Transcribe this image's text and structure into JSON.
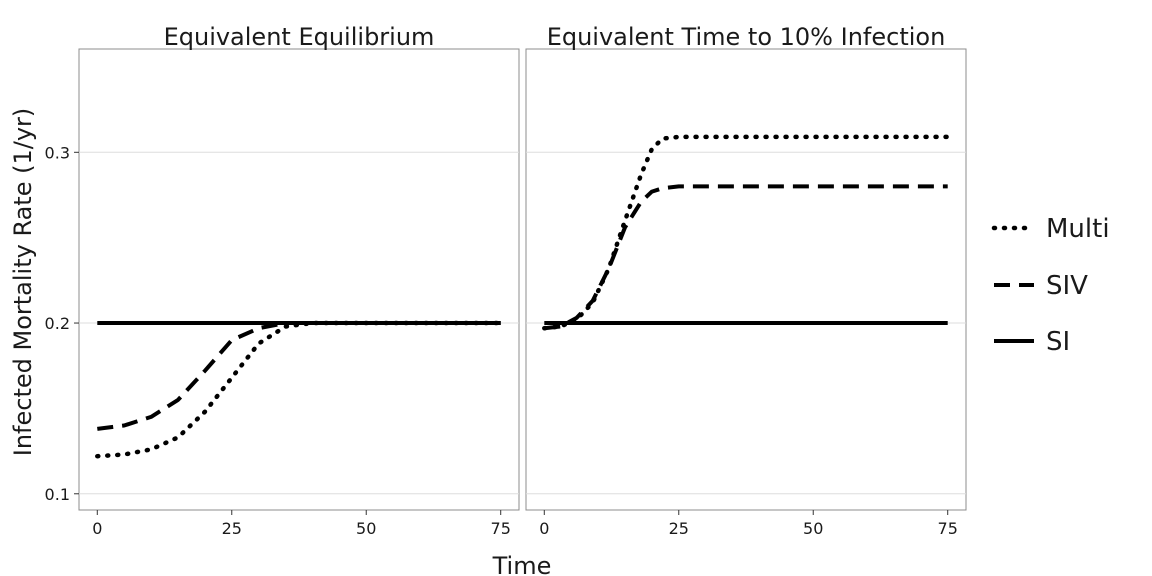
{
  "chart_data": [
    {
      "type": "line",
      "title": "Equivalent Equilibrium",
      "xlabel": "Time",
      "ylabel": "Infected Mortality Rate (1/yr)",
      "xlim": [
        -3.4,
        78.4
      ],
      "ylim": [
        0.0905,
        0.3605
      ],
      "xticks": [
        0,
        25,
        50,
        75
      ],
      "yticks": [
        0.1,
        0.2,
        0.3
      ],
      "xtick_labels": [
        "0",
        "25",
        "50",
        "75"
      ],
      "ytick_labels": [
        "0.1",
        "0.2",
        "0.3"
      ],
      "grid": true,
      "series": [
        {
          "name": "Multi",
          "style": "dotted",
          "x": [
            0,
            5,
            10,
            15,
            20,
            25,
            30,
            35,
            40,
            45,
            50,
            60,
            75
          ],
          "y": [
            0.122,
            0.123,
            0.126,
            0.133,
            0.148,
            0.168,
            0.188,
            0.198,
            0.2,
            0.2,
            0.2,
            0.2,
            0.2
          ]
        },
        {
          "name": "SIV",
          "style": "dashed",
          "x": [
            0,
            5,
            10,
            15,
            20,
            25,
            30,
            35,
            40,
            45,
            50,
            60,
            75
          ],
          "y": [
            0.138,
            0.14,
            0.145,
            0.155,
            0.172,
            0.19,
            0.197,
            0.2,
            0.2,
            0.2,
            0.2,
            0.2,
            0.2
          ]
        },
        {
          "name": "SI",
          "style": "solid",
          "x": [
            0,
            75
          ],
          "y": [
            0.2,
            0.2
          ]
        }
      ]
    },
    {
      "type": "line",
      "title": "Equivalent Time to 10% Infection",
      "xlabel": "Time",
      "ylabel": "Infected Mortality Rate (1/yr)",
      "xlim": [
        -3.4,
        78.4
      ],
      "ylim": [
        0.0905,
        0.3605
      ],
      "xticks": [
        0,
        25,
        50,
        75
      ],
      "yticks": [
        0.1,
        0.2,
        0.3
      ],
      "xtick_labels": [
        "0",
        "25",
        "50",
        "75"
      ],
      "ytick_labels": [
        "0.1",
        "0.2",
        "0.3"
      ],
      "grid": true,
      "series": [
        {
          "name": "Multi",
          "style": "dotted",
          "x": [
            0,
            3,
            6,
            9,
            12,
            15,
            18,
            20,
            22,
            25,
            30,
            40,
            50,
            75
          ],
          "y": [
            0.197,
            0.198,
            0.202,
            0.212,
            0.232,
            0.26,
            0.287,
            0.302,
            0.308,
            0.309,
            0.309,
            0.309,
            0.309,
            0.309
          ]
        },
        {
          "name": "SIV",
          "style": "dashed",
          "x": [
            0,
            3,
            6,
            9,
            12,
            15,
            18,
            20,
            22,
            25,
            30,
            40,
            50,
            75
          ],
          "y": [
            0.197,
            0.198,
            0.203,
            0.213,
            0.232,
            0.256,
            0.271,
            0.277,
            0.279,
            0.28,
            0.28,
            0.28,
            0.28,
            0.28
          ]
        },
        {
          "name": "SI",
          "style": "solid",
          "x": [
            0,
            75
          ],
          "y": [
            0.2,
            0.2
          ]
        }
      ]
    }
  ],
  "legend": {
    "placement": "right",
    "items": [
      {
        "label": "Multi",
        "style": "dotted"
      },
      {
        "label": "SIV",
        "style": "dashed"
      },
      {
        "label": "SI",
        "style": "solid"
      }
    ]
  },
  "colors": {
    "line": "#000000",
    "grid": "#dddddd",
    "panel_border": "#8c8c8c",
    "text": "#1a1a1a"
  }
}
